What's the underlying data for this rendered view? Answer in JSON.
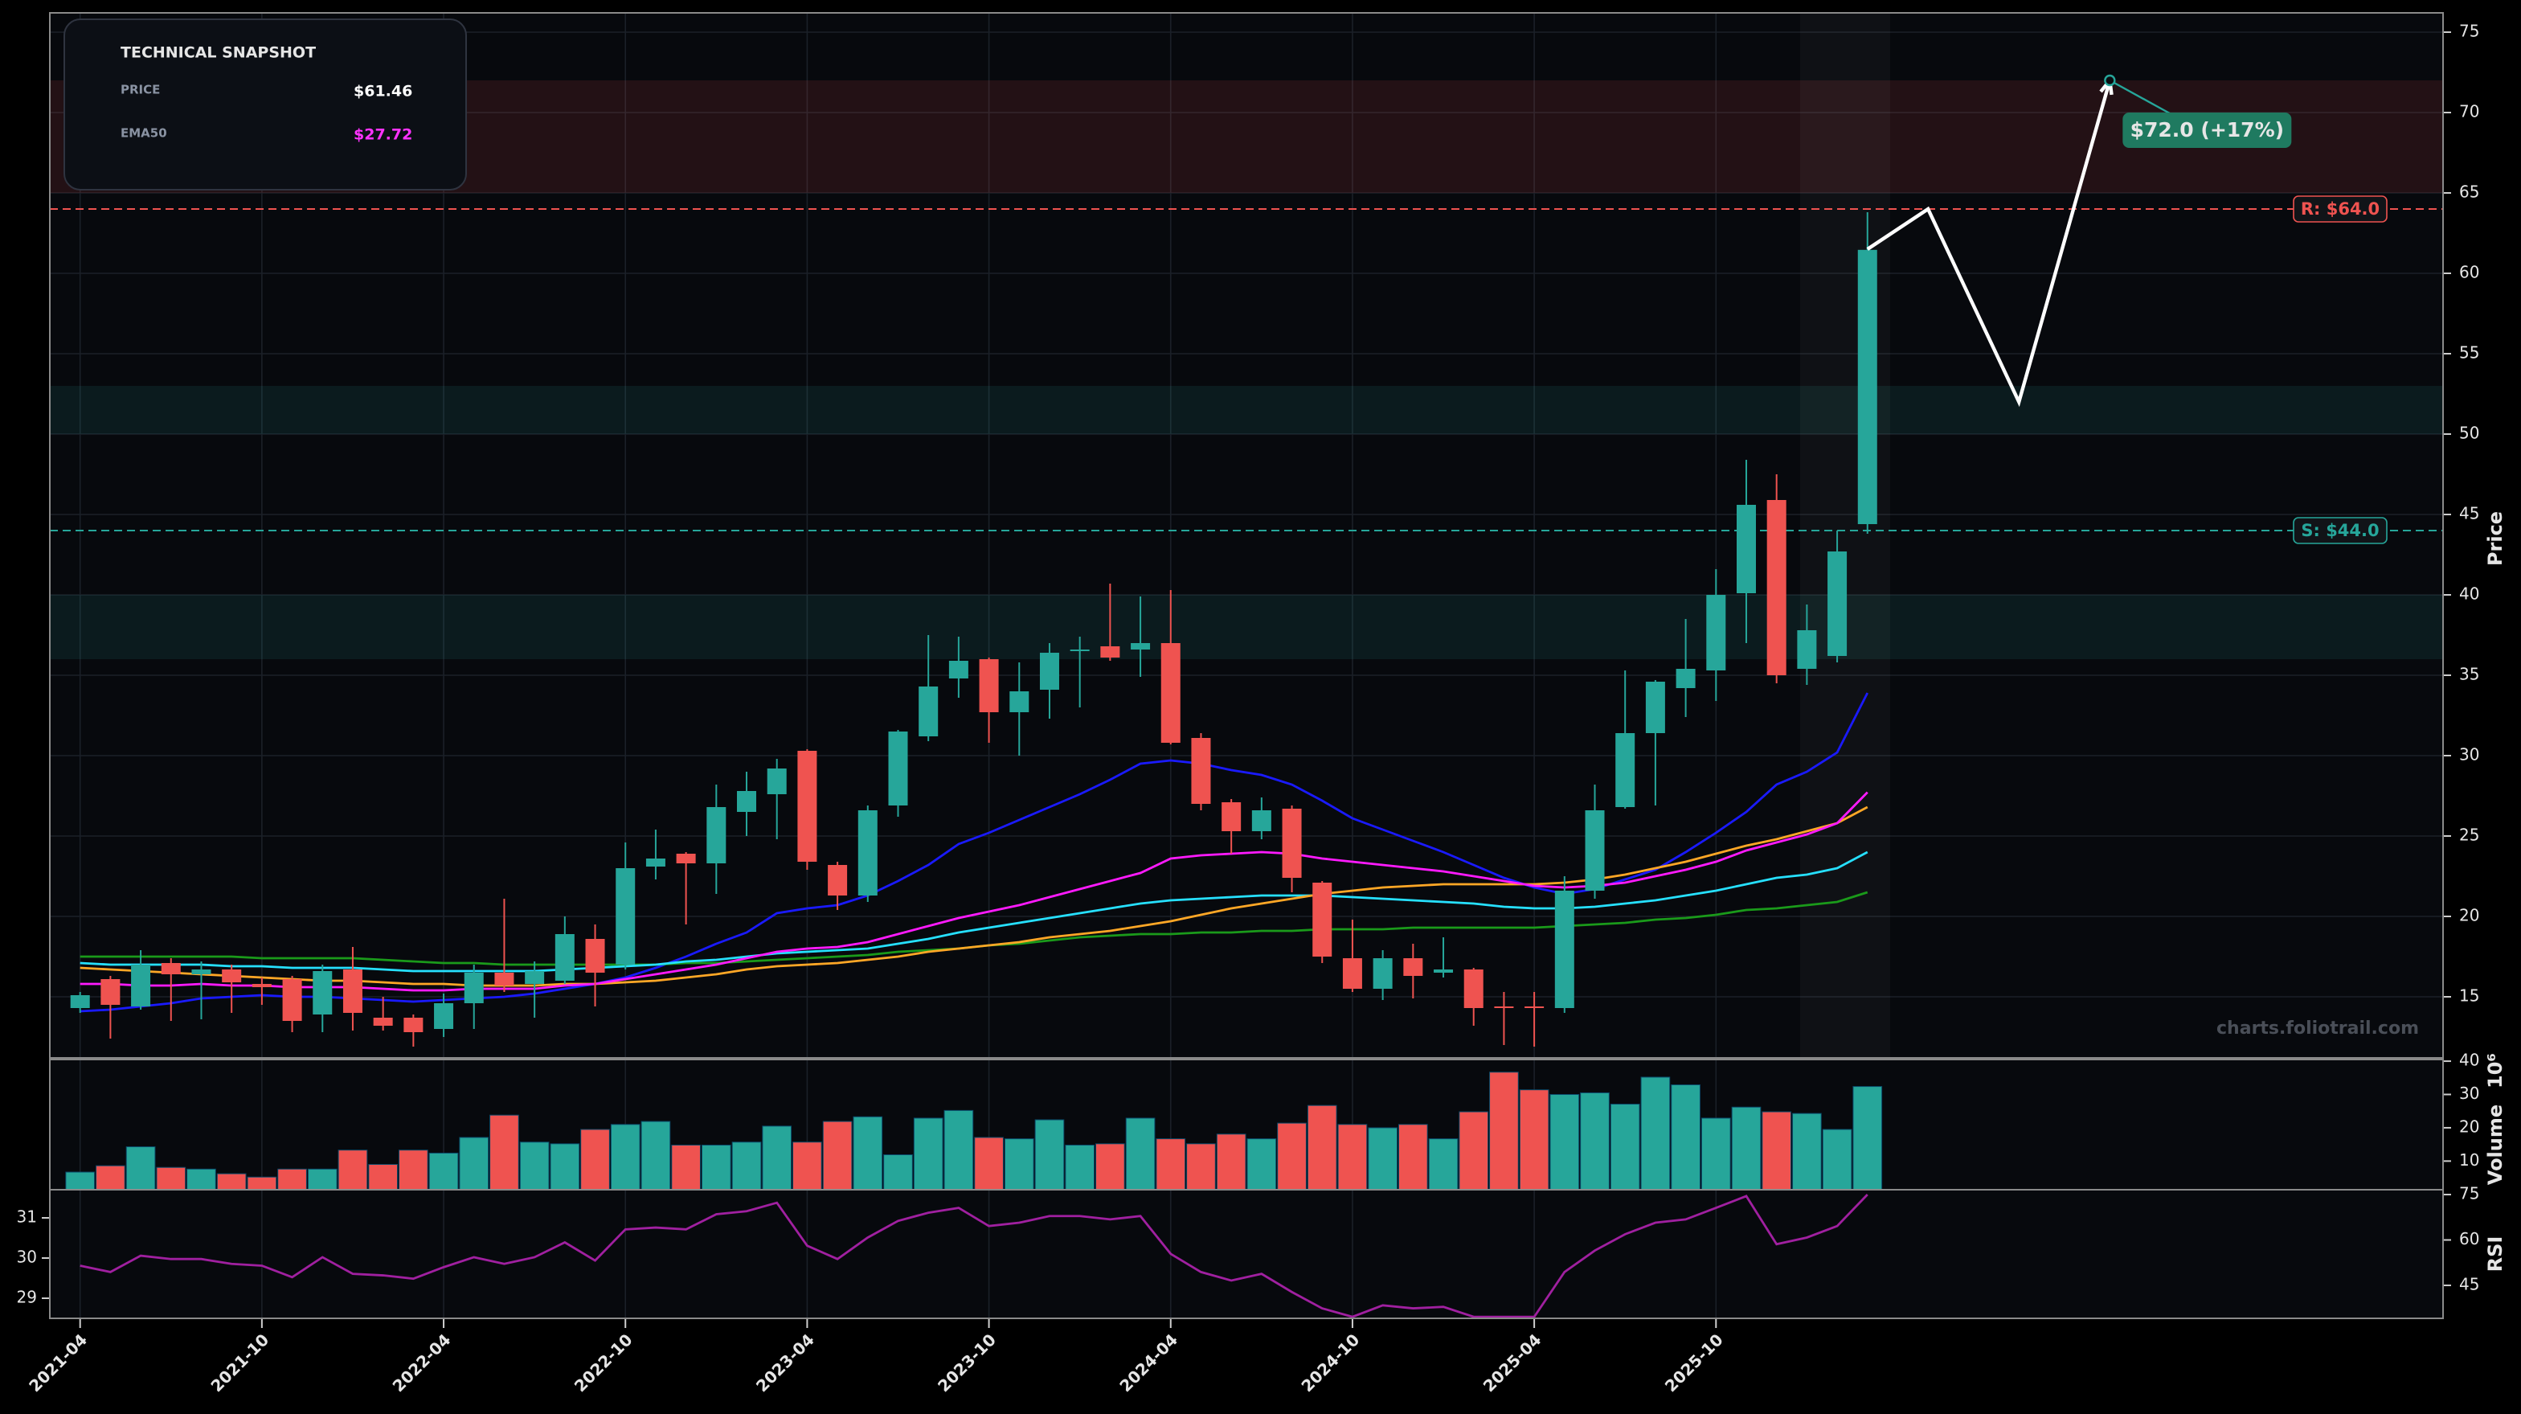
{
  "snapshot": {
    "title": "TECHNICAL SNAPSHOT",
    "rows": [
      {
        "label": "PRICE",
        "value": "$61.46",
        "color": "#ffffff"
      },
      {
        "label": "EMA50",
        "value": "$27.72",
        "color": "#ff33ff"
      }
    ]
  },
  "watermark": "charts.foliotrail.com",
  "chart_data": [
    {
      "type": "candlestick",
      "ylabel": "Price",
      "x": [
        "2021-04",
        "2021-05",
        "2021-06",
        "2021-07",
        "2021-08",
        "2021-09",
        "2021-10",
        "2021-11",
        "2021-12",
        "2022-01",
        "2022-02",
        "2022-03",
        "2022-04",
        "2022-05",
        "2022-06",
        "2022-07",
        "2022-08",
        "2022-09",
        "2022-10",
        "2022-11",
        "2022-12",
        "2023-01",
        "2023-02",
        "2023-03",
        "2023-04",
        "2023-05",
        "2023-06",
        "2023-07",
        "2023-08",
        "2023-09",
        "2023-10",
        "2023-11",
        "2023-12",
        "2024-01",
        "2024-02",
        "2024-03",
        "2024-04",
        "2024-05",
        "2024-06",
        "2024-07",
        "2024-08",
        "2024-09",
        "2024-10",
        "2024-11",
        "2024-12",
        "2025-01",
        "2025-02",
        "2025-03",
        "2025-04",
        "2025-05",
        "2025-06",
        "2025-07",
        "2025-08",
        "2025-09",
        "2025-10",
        "2025-11",
        "2025-12",
        "2026-01",
        "2026-02",
        "2026-03"
      ],
      "open": [
        14.3,
        16.1,
        14.4,
        17.1,
        16.4,
        16.7,
        15.8,
        16.1,
        13.9,
        16.7,
        13.7,
        13.7,
        13.0,
        14.6,
        16.5,
        15.8,
        16.0,
        18.6,
        17.0,
        23.1,
        23.9,
        23.3,
        26.5,
        27.6,
        30.3,
        23.2,
        21.3,
        26.9,
        31.2,
        34.8,
        36.0,
        32.7,
        34.1,
        36.5,
        36.8,
        36.6,
        37.0,
        31.1,
        27.1,
        25.3,
        26.7,
        22.1,
        17.4,
        15.5,
        17.4,
        16.5,
        16.7,
        14.4,
        14.4,
        14.3,
        21.6,
        26.8,
        31.4,
        34.2,
        35.3,
        40.1,
        45.9,
        35.4,
        36.2,
        44.4
      ],
      "high": [
        15.3,
        16.3,
        17.9,
        17.4,
        17.2,
        17.0,
        16.2,
        16.3,
        17.0,
        18.1,
        15.0,
        13.9,
        15.2,
        17.0,
        21.1,
        17.2,
        20.0,
        19.5,
        24.6,
        25.4,
        24.0,
        28.2,
        29.0,
        29.8,
        30.4,
        23.4,
        26.9,
        31.6,
        37.5,
        37.4,
        36.1,
        35.8,
        37.0,
        37.4,
        40.7,
        39.9,
        40.3,
        31.4,
        27.3,
        27.4,
        26.9,
        22.2,
        19.8,
        17.9,
        18.3,
        18.7,
        16.8,
        15.3,
        15.3,
        22.5,
        28.2,
        35.3,
        34.7,
        38.5,
        41.6,
        48.4,
        47.5,
        39.4,
        44.0,
        63.8
      ],
      "low": [
        14.0,
        12.4,
        14.2,
        13.5,
        13.6,
        14.0,
        14.5,
        12.8,
        12.8,
        12.9,
        12.9,
        11.9,
        12.5,
        13.0,
        15.3,
        13.7,
        15.8,
        14.4,
        16.7,
        22.3,
        19.5,
        21.4,
        25.0,
        24.8,
        22.9,
        20.4,
        20.9,
        26.2,
        30.9,
        33.6,
        30.8,
        30.0,
        32.3,
        33.0,
        35.9,
        34.9,
        30.7,
        26.6,
        23.9,
        24.8,
        21.5,
        17.1,
        15.3,
        14.8,
        14.9,
        16.2,
        13.2,
        12.0,
        11.9,
        14.0,
        21.1,
        26.7,
        26.9,
        32.4,
        33.4,
        37.0,
        34.5,
        34.4,
        35.8,
        43.8
      ],
      "close": [
        15.1,
        14.5,
        17.0,
        16.4,
        16.7,
        15.9,
        15.6,
        13.5,
        16.6,
        14.0,
        13.2,
        12.8,
        14.6,
        16.5,
        15.7,
        16.6,
        18.9,
        16.5,
        23.0,
        23.6,
        23.3,
        26.8,
        27.8,
        29.2,
        23.4,
        21.3,
        26.6,
        31.5,
        34.3,
        35.9,
        32.7,
        34.0,
        36.4,
        36.6,
        36.1,
        37.0,
        30.8,
        27.0,
        25.3,
        26.6,
        22.4,
        17.5,
        15.5,
        17.4,
        16.3,
        16.7,
        14.3,
        14.3,
        14.3,
        21.6,
        26.6,
        31.4,
        34.6,
        35.4,
        40.0,
        45.6,
        35.0,
        37.8,
        42.7,
        61.46
      ],
      "up_color": "#26a69a",
      "down_color": "#ef5350",
      "series": [
        {
          "color": "#1a1aff",
          "values": [
            14.1,
            14.2,
            14.4,
            14.6,
            14.9,
            15.0,
            15.1,
            15.0,
            15.0,
            14.9,
            14.8,
            14.7,
            14.8,
            14.9,
            15.0,
            15.2,
            15.5,
            15.8,
            16.2,
            16.8,
            17.5,
            18.3,
            19.0,
            20.2,
            20.5,
            20.7,
            21.3,
            22.2,
            23.2,
            24.5,
            25.2,
            26.0,
            26.8,
            27.6,
            28.5,
            29.5,
            29.7,
            29.5,
            29.1,
            28.8,
            28.2,
            27.2,
            26.1,
            25.4,
            24.7,
            24.0,
            23.2,
            22.4,
            21.8,
            21.4,
            21.7,
            22.3,
            22.9,
            24.0,
            25.2,
            26.5,
            28.2,
            29.0,
            30.2,
            33.9
          ]
        },
        {
          "color": "#1a9a1a",
          "values": [
            17.5,
            17.5,
            17.5,
            17.5,
            17.5,
            17.5,
            17.4,
            17.4,
            17.4,
            17.4,
            17.3,
            17.2,
            17.1,
            17.1,
            17.0,
            17.0,
            17.0,
            17.0,
            17.0,
            17.0,
            17.1,
            17.1,
            17.2,
            17.3,
            17.4,
            17.5,
            17.6,
            17.8,
            17.9,
            18.0,
            18.2,
            18.3,
            18.5,
            18.7,
            18.8,
            18.9,
            18.9,
            19.0,
            19.0,
            19.1,
            19.1,
            19.2,
            19.2,
            19.2,
            19.3,
            19.3,
            19.3,
            19.3,
            19.3,
            19.4,
            19.5,
            19.6,
            19.8,
            19.9,
            20.1,
            20.4,
            20.5,
            20.7,
            20.9,
            21.5
          ]
        },
        {
          "color": "#26e0ff",
          "values": [
            17.1,
            17.0,
            17.0,
            17.0,
            17.0,
            16.9,
            16.9,
            16.8,
            16.8,
            16.8,
            16.7,
            16.6,
            16.6,
            16.6,
            16.6,
            16.6,
            16.7,
            16.8,
            16.9,
            17.0,
            17.2,
            17.3,
            17.5,
            17.7,
            17.8,
            17.9,
            18.0,
            18.3,
            18.6,
            19.0,
            19.3,
            19.6,
            19.9,
            20.2,
            20.5,
            20.8,
            21.0,
            21.1,
            21.2,
            21.3,
            21.3,
            21.3,
            21.2,
            21.1,
            21.0,
            20.9,
            20.8,
            20.6,
            20.5,
            20.5,
            20.6,
            20.8,
            21.0,
            21.3,
            21.6,
            22.0,
            22.4,
            22.6,
            23.0,
            24.0
          ]
        },
        {
          "color": "#ffa726",
          "values": [
            16.8,
            16.7,
            16.6,
            16.5,
            16.4,
            16.3,
            16.2,
            16.1,
            16.0,
            16.0,
            15.9,
            15.8,
            15.8,
            15.7,
            15.7,
            15.7,
            15.8,
            15.8,
            15.9,
            16.0,
            16.2,
            16.4,
            16.7,
            16.9,
            17.0,
            17.1,
            17.3,
            17.5,
            17.8,
            18.0,
            18.2,
            18.4,
            18.7,
            18.9,
            19.1,
            19.4,
            19.7,
            20.1,
            20.5,
            20.8,
            21.1,
            21.4,
            21.6,
            21.8,
            21.9,
            22.0,
            22.0,
            22.0,
            22.0,
            22.1,
            22.3,
            22.6,
            23.0,
            23.4,
            23.9,
            24.4,
            24.8,
            25.3,
            25.8,
            26.8
          ]
        },
        {
          "color": "#ff1aff",
          "values": [
            15.8,
            15.8,
            15.7,
            15.7,
            15.8,
            15.7,
            15.7,
            15.6,
            15.6,
            15.6,
            15.5,
            15.4,
            15.4,
            15.5,
            15.5,
            15.5,
            15.7,
            15.8,
            16.1,
            16.4,
            16.7,
            17.0,
            17.4,
            17.8,
            18.0,
            18.1,
            18.4,
            18.9,
            19.4,
            19.9,
            20.3,
            20.7,
            21.2,
            21.7,
            22.2,
            22.7,
            23.6,
            23.8,
            23.9,
            24.0,
            23.9,
            23.6,
            23.4,
            23.2,
            23.0,
            22.8,
            22.5,
            22.2,
            21.9,
            21.8,
            21.9,
            22.1,
            22.5,
            22.9,
            23.4,
            24.1,
            24.6,
            25.1,
            25.8,
            27.72
          ]
        }
      ],
      "zones": [
        {
          "range": [
            65.0,
            72.0
          ],
          "color": "#ef5350"
        },
        {
          "range": [
            50.0,
            53.0
          ],
          "color": "#26a69a"
        },
        {
          "range": [
            36.0,
            40.0
          ],
          "color": "#26a69a"
        }
      ],
      "levels": [
        {
          "value": 64.0,
          "label": "R: $64.0",
          "color": "#ef5350"
        },
        {
          "value": 44.0,
          "label": "S: $44.0",
          "color": "#26a69a"
        }
      ],
      "projection": {
        "color": "#ffffff",
        "x": [
          "2026-03",
          "2026-05",
          "2026-08",
          "2026-11"
        ],
        "values": [
          61.5,
          64.0,
          52.0,
          72.0
        ],
        "value_labels": [
          null,
          null,
          null,
          "$72.0 (+17%)"
        ]
      },
      "xlim": [
        "2021-03",
        "2027-10"
      ],
      "xticks": [
        "2021-04",
        "2021-10",
        "2022-04",
        "2022-10",
        "2023-04",
        "2023-10",
        "2024-04",
        "2024-10",
        "2025-04",
        "2025-10"
      ],
      "ylim": [
        11.2,
        76.2
      ],
      "yticks": [
        15,
        20,
        25,
        30,
        35,
        40,
        45,
        50,
        55,
        60,
        65,
        70,
        75
      ],
      "grid": true
    },
    {
      "type": "bar",
      "ylabel": "Volume",
      "offset_label": "10⁶",
      "values": [
        6.7,
        8.6,
        14.3,
        8.1,
        7.6,
        6.2,
        5.2,
        7.6,
        7.6,
        13.3,
        9.0,
        13.3,
        12.4,
        17.1,
        23.8,
        15.7,
        15.2,
        19.5,
        21.0,
        21.9,
        14.8,
        14.8,
        15.7,
        20.5,
        15.7,
        21.9,
        23.3,
        11.9,
        22.9,
        25.2,
        17.1,
        16.7,
        22.4,
        14.8,
        15.2,
        22.9,
        16.7,
        15.2,
        18.1,
        16.7,
        21.4,
        26.7,
        21.0,
        20.0,
        21.0,
        16.7,
        24.8,
        36.7,
        31.4,
        30.0,
        30.5,
        27.1,
        35.2,
        32.9,
        22.9,
        26.2,
        24.8,
        24.3,
        19.5,
        32.4
      ],
      "ylim": [
        1.4,
        40.5
      ],
      "yticks": [
        10,
        20,
        30,
        40
      ]
    },
    {
      "type": "line",
      "ylabel": "RSI",
      "color": "#a020a0",
      "values": [
        51.5,
        49.4,
        54.8,
        53.7,
        53.7,
        52.1,
        51.5,
        47.7,
        54.3,
        48.8,
        48.3,
        47.2,
        51.0,
        54.3,
        52.1,
        54.3,
        59.2,
        53.2,
        63.5,
        64.1,
        63.5,
        68.5,
        69.5,
        72.3,
        58.1,
        53.7,
        60.8,
        66.3,
        69.0,
        70.6,
        64.6,
        65.7,
        67.9,
        67.9,
        66.8,
        67.9,
        55.4,
        49.4,
        46.6,
        48.8,
        42.8,
        37.4,
        34.6,
        38.4,
        37.4,
        37.9,
        34.6,
        34.6,
        34.6,
        49.4,
        56.5,
        61.9,
        65.7,
        66.8,
        70.6,
        74.5,
        58.6,
        60.8,
        64.6,
        75.0
      ],
      "ylim": [
        34.1,
        76.6
      ],
      "yticks": [
        45,
        60,
        75
      ],
      "y2lim": [
        28.5,
        31.7
      ],
      "y2ticks": [
        29,
        30,
        31
      ]
    }
  ]
}
